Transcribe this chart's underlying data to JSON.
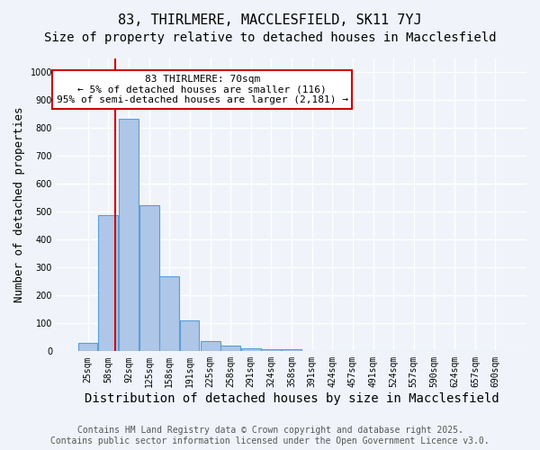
{
  "title1": "83, THIRLMERE, MACCLESFIELD, SK11 7YJ",
  "title2": "Size of property relative to detached houses in Macclesfield",
  "xlabel": "Distribution of detached houses by size in Macclesfield",
  "ylabel": "Number of detached properties",
  "bins": [
    25,
    58,
    92,
    125,
    158,
    191,
    225,
    258,
    291,
    324,
    358,
    391,
    424,
    457,
    491,
    524,
    557,
    590,
    624,
    657,
    690
  ],
  "values": [
    30,
    490,
    835,
    525,
    270,
    110,
    38,
    22,
    10,
    7,
    8,
    0,
    0,
    0,
    0,
    0,
    0,
    0,
    0,
    0,
    0
  ],
  "bar_color": "#aec6e8",
  "bar_edge_color": "#5a9fd4",
  "property_size": 70,
  "red_line_color": "#cc0000",
  "annotation_line1": "83 THIRLMERE: 70sqm",
  "annotation_line2": "← 5% of detached houses are smaller (116)",
  "annotation_line3": "95% of semi-detached houses are larger (2,181) →",
  "annotation_box_edge": "#cc0000",
  "annotation_bg": "#ffffff",
  "ylim": [
    0,
    1050
  ],
  "yticks": [
    0,
    100,
    200,
    300,
    400,
    500,
    600,
    700,
    800,
    900,
    1000
  ],
  "footer1": "Contains HM Land Registry data © Crown copyright and database right 2025.",
  "footer2": "Contains public sector information licensed under the Open Government Licence v3.0.",
  "bg_color": "#f0f4fa",
  "grid_color": "#ffffff",
  "title1_fontsize": 11,
  "title2_fontsize": 10,
  "xlabel_fontsize": 10,
  "ylabel_fontsize": 9,
  "tick_fontsize": 7,
  "footer_fontsize": 7,
  "annotation_fontsize": 8
}
